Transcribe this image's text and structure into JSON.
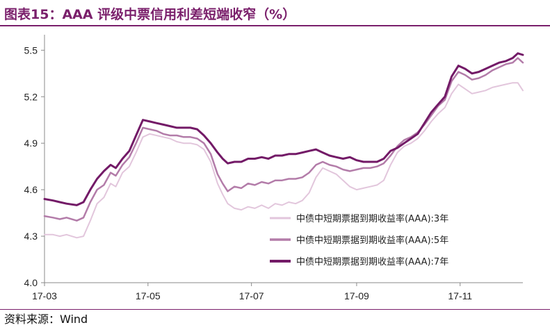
{
  "title": "图表15：AAA 评级中票信用利差短端收窄（%）",
  "source": "资料来源：Wind",
  "chart_data": {
    "type": "line",
    "title": "图表15：AAA 评级中票信用利差短端收窄（%）",
    "xlabel": "",
    "ylabel": "",
    "ylim": [
      4.0,
      5.6
    ],
    "yticks": [
      4.0,
      4.3,
      4.6,
      4.9,
      5.2,
      5.5
    ],
    "ytick_labels": [
      "4.0",
      "4.3",
      "4.6",
      "4.9",
      "5.2",
      "5.5"
    ],
    "xlim": [
      "2017-03-01",
      "2017-12-08"
    ],
    "xticks": [
      "2017-03-01",
      "2017-05-01",
      "2017-07-01",
      "2017-09-01",
      "2017-11-01"
    ],
    "xtick_labels": [
      "17-03",
      "17-05",
      "17-07",
      "17-09",
      "17-11"
    ],
    "grid": false,
    "legend_position": "bottom-right",
    "series": [
      {
        "name": "中债中短期票据到期收益率(AAA):3年",
        "color": "#e2c6dc",
        "width": 2,
        "points": [
          [
            "2017-03-01",
            4.31
          ],
          [
            "2017-03-06",
            4.31
          ],
          [
            "2017-03-10",
            4.3
          ],
          [
            "2017-03-14",
            4.31
          ],
          [
            "2017-03-20",
            4.29
          ],
          [
            "2017-03-24",
            4.3
          ],
          [
            "2017-03-28",
            4.4
          ],
          [
            "2017-04-01",
            4.51
          ],
          [
            "2017-04-05",
            4.55
          ],
          [
            "2017-04-09",
            4.64
          ],
          [
            "2017-04-12",
            4.62
          ],
          [
            "2017-04-16",
            4.71
          ],
          [
            "2017-04-20",
            4.75
          ],
          [
            "2017-04-24",
            4.84
          ],
          [
            "2017-04-28",
            4.94
          ],
          [
            "2017-05-02",
            4.96
          ],
          [
            "2017-05-06",
            4.95
          ],
          [
            "2017-05-10",
            4.94
          ],
          [
            "2017-05-14",
            4.93
          ],
          [
            "2017-05-18",
            4.91
          ],
          [
            "2017-05-22",
            4.9
          ],
          [
            "2017-05-26",
            4.9
          ],
          [
            "2017-05-30",
            4.89
          ],
          [
            "2017-06-03",
            4.86
          ],
          [
            "2017-06-07",
            4.78
          ],
          [
            "2017-06-11",
            4.64
          ],
          [
            "2017-06-14",
            4.57
          ],
          [
            "2017-06-17",
            4.51
          ],
          [
            "2017-06-21",
            4.48
          ],
          [
            "2017-06-25",
            4.47
          ],
          [
            "2017-06-29",
            4.49
          ],
          [
            "2017-07-03",
            4.48
          ],
          [
            "2017-07-07",
            4.5
          ],
          [
            "2017-07-11",
            4.48
          ],
          [
            "2017-07-15",
            4.51
          ],
          [
            "2017-07-19",
            4.5
          ],
          [
            "2017-07-23",
            4.52
          ],
          [
            "2017-07-27",
            4.51
          ],
          [
            "2017-07-31",
            4.53
          ],
          [
            "2017-08-04",
            4.58
          ],
          [
            "2017-08-08",
            4.68
          ],
          [
            "2017-08-12",
            4.74
          ],
          [
            "2017-08-16",
            4.72
          ],
          [
            "2017-08-20",
            4.7
          ],
          [
            "2017-08-24",
            4.66
          ],
          [
            "2017-08-28",
            4.62
          ],
          [
            "2017-09-01",
            4.6
          ],
          [
            "2017-09-05",
            4.61
          ],
          [
            "2017-09-09",
            4.62
          ],
          [
            "2017-09-13",
            4.63
          ],
          [
            "2017-09-17",
            4.66
          ],
          [
            "2017-09-21",
            4.76
          ],
          [
            "2017-09-25",
            4.84
          ],
          [
            "2017-09-29",
            4.88
          ],
          [
            "2017-10-03",
            4.9
          ],
          [
            "2017-10-07",
            4.93
          ],
          [
            "2017-10-11",
            4.98
          ],
          [
            "2017-10-15",
            5.04
          ],
          [
            "2017-10-19",
            5.09
          ],
          [
            "2017-10-23",
            5.13
          ],
          [
            "2017-10-27",
            5.22
          ],
          [
            "2017-10-31",
            5.28
          ],
          [
            "2017-11-04",
            5.25
          ],
          [
            "2017-11-08",
            5.22
          ],
          [
            "2017-11-12",
            5.23
          ],
          [
            "2017-11-16",
            5.24
          ],
          [
            "2017-11-20",
            5.26
          ],
          [
            "2017-11-24",
            5.27
          ],
          [
            "2017-11-28",
            5.28
          ],
          [
            "2017-12-02",
            5.29
          ],
          [
            "2017-12-05",
            5.29
          ],
          [
            "2017-12-08",
            5.24
          ]
        ]
      },
      {
        "name": "中债中短期票据到期收益率(AAA):5年",
        "color": "#b37ca9",
        "width": 2.5,
        "points": [
          [
            "2017-03-01",
            4.43
          ],
          [
            "2017-03-06",
            4.42
          ],
          [
            "2017-03-10",
            4.41
          ],
          [
            "2017-03-14",
            4.42
          ],
          [
            "2017-03-20",
            4.4
          ],
          [
            "2017-03-24",
            4.42
          ],
          [
            "2017-03-28",
            4.52
          ],
          [
            "2017-04-01",
            4.6
          ],
          [
            "2017-04-05",
            4.63
          ],
          [
            "2017-04-09",
            4.71
          ],
          [
            "2017-04-12",
            4.69
          ],
          [
            "2017-04-16",
            4.76
          ],
          [
            "2017-04-20",
            4.81
          ],
          [
            "2017-04-24",
            4.9
          ],
          [
            "2017-04-28",
            5.0
          ],
          [
            "2017-05-02",
            4.99
          ],
          [
            "2017-05-06",
            4.98
          ],
          [
            "2017-05-10",
            4.96
          ],
          [
            "2017-05-14",
            4.95
          ],
          [
            "2017-05-18",
            4.95
          ],
          [
            "2017-05-22",
            4.94
          ],
          [
            "2017-05-26",
            4.94
          ],
          [
            "2017-05-30",
            4.93
          ],
          [
            "2017-06-03",
            4.9
          ],
          [
            "2017-06-07",
            4.83
          ],
          [
            "2017-06-11",
            4.7
          ],
          [
            "2017-06-14",
            4.64
          ],
          [
            "2017-06-17",
            4.59
          ],
          [
            "2017-06-21",
            4.62
          ],
          [
            "2017-06-25",
            4.61
          ],
          [
            "2017-06-29",
            4.64
          ],
          [
            "2017-07-03",
            4.63
          ],
          [
            "2017-07-07",
            4.65
          ],
          [
            "2017-07-11",
            4.64
          ],
          [
            "2017-07-15",
            4.66
          ],
          [
            "2017-07-19",
            4.66
          ],
          [
            "2017-07-23",
            4.67
          ],
          [
            "2017-07-27",
            4.67
          ],
          [
            "2017-07-31",
            4.68
          ],
          [
            "2017-08-04",
            4.71
          ],
          [
            "2017-08-08",
            4.76
          ],
          [
            "2017-08-12",
            4.78
          ],
          [
            "2017-08-16",
            4.76
          ],
          [
            "2017-08-20",
            4.75
          ],
          [
            "2017-08-24",
            4.73
          ],
          [
            "2017-08-28",
            4.72
          ],
          [
            "2017-09-01",
            4.73
          ],
          [
            "2017-09-05",
            4.74
          ],
          [
            "2017-09-09",
            4.74
          ],
          [
            "2017-09-13",
            4.75
          ],
          [
            "2017-09-17",
            4.77
          ],
          [
            "2017-09-21",
            4.82
          ],
          [
            "2017-09-25",
            4.88
          ],
          [
            "2017-09-29",
            4.92
          ],
          [
            "2017-10-03",
            4.94
          ],
          [
            "2017-10-07",
            4.97
          ],
          [
            "2017-10-11",
            5.02
          ],
          [
            "2017-10-15",
            5.08
          ],
          [
            "2017-10-19",
            5.14
          ],
          [
            "2017-10-23",
            5.18
          ],
          [
            "2017-10-27",
            5.3
          ],
          [
            "2017-10-31",
            5.36
          ],
          [
            "2017-11-04",
            5.34
          ],
          [
            "2017-11-08",
            5.31
          ],
          [
            "2017-11-12",
            5.32
          ],
          [
            "2017-11-16",
            5.34
          ],
          [
            "2017-11-20",
            5.37
          ],
          [
            "2017-11-24",
            5.39
          ],
          [
            "2017-11-28",
            5.41
          ],
          [
            "2017-12-02",
            5.42
          ],
          [
            "2017-12-05",
            5.45
          ],
          [
            "2017-12-08",
            5.42
          ]
        ]
      },
      {
        "name": "中债中短期票据到期收益率(AAA):7年",
        "color": "#731a67",
        "width": 3,
        "points": [
          [
            "2017-03-01",
            4.54
          ],
          [
            "2017-03-06",
            4.53
          ],
          [
            "2017-03-10",
            4.52
          ],
          [
            "2017-03-14",
            4.51
          ],
          [
            "2017-03-20",
            4.5
          ],
          [
            "2017-03-24",
            4.52
          ],
          [
            "2017-03-28",
            4.6
          ],
          [
            "2017-04-01",
            4.67
          ],
          [
            "2017-04-05",
            4.72
          ],
          [
            "2017-04-09",
            4.76
          ],
          [
            "2017-04-12",
            4.74
          ],
          [
            "2017-04-16",
            4.8
          ],
          [
            "2017-04-20",
            4.85
          ],
          [
            "2017-04-24",
            4.95
          ],
          [
            "2017-04-28",
            5.05
          ],
          [
            "2017-05-02",
            5.04
          ],
          [
            "2017-05-06",
            5.03
          ],
          [
            "2017-05-10",
            5.02
          ],
          [
            "2017-05-14",
            5.01
          ],
          [
            "2017-05-18",
            5.0
          ],
          [
            "2017-05-22",
            5.0
          ],
          [
            "2017-05-26",
            5.0
          ],
          [
            "2017-05-30",
            4.99
          ],
          [
            "2017-06-03",
            4.95
          ],
          [
            "2017-06-07",
            4.9
          ],
          [
            "2017-06-11",
            4.84
          ],
          [
            "2017-06-14",
            4.8
          ],
          [
            "2017-06-17",
            4.77
          ],
          [
            "2017-06-21",
            4.78
          ],
          [
            "2017-06-25",
            4.78
          ],
          [
            "2017-06-29",
            4.8
          ],
          [
            "2017-07-03",
            4.8
          ],
          [
            "2017-07-07",
            4.81
          ],
          [
            "2017-07-11",
            4.8
          ],
          [
            "2017-07-15",
            4.82
          ],
          [
            "2017-07-19",
            4.82
          ],
          [
            "2017-07-23",
            4.83
          ],
          [
            "2017-07-27",
            4.83
          ],
          [
            "2017-07-31",
            4.84
          ],
          [
            "2017-08-04",
            4.85
          ],
          [
            "2017-08-08",
            4.86
          ],
          [
            "2017-08-12",
            4.84
          ],
          [
            "2017-08-16",
            4.82
          ],
          [
            "2017-08-20",
            4.81
          ],
          [
            "2017-08-24",
            4.8
          ],
          [
            "2017-08-28",
            4.81
          ],
          [
            "2017-09-01",
            4.79
          ],
          [
            "2017-09-05",
            4.78
          ],
          [
            "2017-09-09",
            4.78
          ],
          [
            "2017-09-13",
            4.78
          ],
          [
            "2017-09-17",
            4.8
          ],
          [
            "2017-09-21",
            4.85
          ],
          [
            "2017-09-25",
            4.87
          ],
          [
            "2017-09-29",
            4.9
          ],
          [
            "2017-10-03",
            4.93
          ],
          [
            "2017-10-07",
            4.96
          ],
          [
            "2017-10-11",
            5.03
          ],
          [
            "2017-10-15",
            5.1
          ],
          [
            "2017-10-19",
            5.15
          ],
          [
            "2017-10-23",
            5.2
          ],
          [
            "2017-10-27",
            5.33
          ],
          [
            "2017-10-31",
            5.4
          ],
          [
            "2017-11-04",
            5.38
          ],
          [
            "2017-11-08",
            5.35
          ],
          [
            "2017-11-12",
            5.36
          ],
          [
            "2017-11-16",
            5.38
          ],
          [
            "2017-11-20",
            5.4
          ],
          [
            "2017-11-24",
            5.42
          ],
          [
            "2017-11-28",
            5.43
          ],
          [
            "2017-12-02",
            5.45
          ],
          [
            "2017-12-05",
            5.48
          ],
          [
            "2017-12-08",
            5.47
          ]
        ]
      }
    ]
  }
}
